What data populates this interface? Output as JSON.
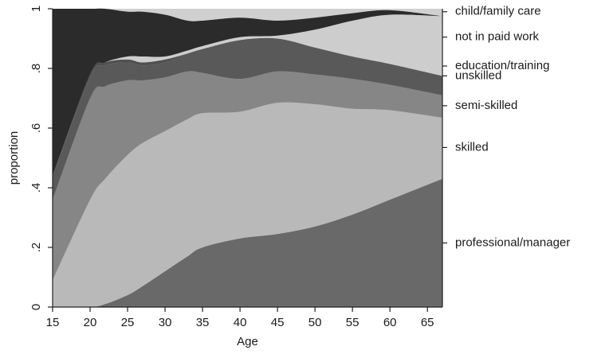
{
  "chart_data": {
    "type": "area",
    "stacked": true,
    "xlabel": "Age",
    "ylabel": "proportion",
    "xlim": [
      15,
      67
    ],
    "ylim": [
      0,
      1
    ],
    "x_ticks": [
      15,
      20,
      25,
      30,
      35,
      40,
      45,
      50,
      55,
      60,
      65
    ],
    "y_ticks": [
      0,
      0.2,
      0.4,
      0.6,
      0.8,
      1
    ],
    "y_tick_labels": [
      "0",
      ".2",
      ".4",
      ".6",
      ".8",
      "1"
    ],
    "x": [
      15,
      20,
      22,
      25,
      27,
      30,
      33,
      35,
      40,
      45,
      50,
      55,
      60,
      67
    ],
    "series": [
      {
        "name": "professional/manager",
        "color": "#696969",
        "values": [
          0.0,
          0.0,
          0.01,
          0.04,
          0.07,
          0.12,
          0.17,
          0.2,
          0.23,
          0.245,
          0.27,
          0.31,
          0.36,
          0.43
        ]
      },
      {
        "name": "skilled",
        "color": "#b9b9b9",
        "values": [
          0.09,
          0.36,
          0.42,
          0.47,
          0.48,
          0.47,
          0.46,
          0.45,
          0.425,
          0.44,
          0.41,
          0.355,
          0.3,
          0.205
        ]
      },
      {
        "name": "semi-skilled",
        "color": "#868686",
        "values": [
          0.27,
          0.34,
          0.31,
          0.25,
          0.21,
          0.18,
          0.16,
          0.135,
          0.11,
          0.105,
          0.1,
          0.1,
          0.085,
          0.075
        ]
      },
      {
        "name": "unskilled",
        "color": "#595959",
        "values": [
          0.08,
          0.07,
          0.07,
          0.06,
          0.05,
          0.05,
          0.06,
          0.08,
          0.13,
          0.11,
          0.09,
          0.075,
          0.07,
          0.065
        ]
      },
      {
        "name": "education/training",
        "color": "#505050",
        "values": [
          0.0,
          0.01,
          0.01,
          0.01,
          0.01,
          0.01,
          0.0,
          0.0,
          0.0,
          0.0,
          0.0,
          0.0,
          0.0,
          0.0
        ]
      },
      {
        "name": "not in paid work",
        "color": "#cdcdcd",
        "values": [
          0.0,
          0.0,
          0.0,
          0.01,
          0.02,
          0.01,
          0.01,
          0.01,
          0.01,
          0.01,
          0.06,
          0.12,
          0.165,
          0.2
        ]
      },
      {
        "name": "child/family care",
        "color": "#2b2b2b",
        "values": [
          0.56,
          0.22,
          0.18,
          0.15,
          0.15,
          0.14,
          0.1,
          0.085,
          0.065,
          0.05,
          0.04,
          0.025,
          0.015,
          0.0
        ]
      }
    ]
  }
}
